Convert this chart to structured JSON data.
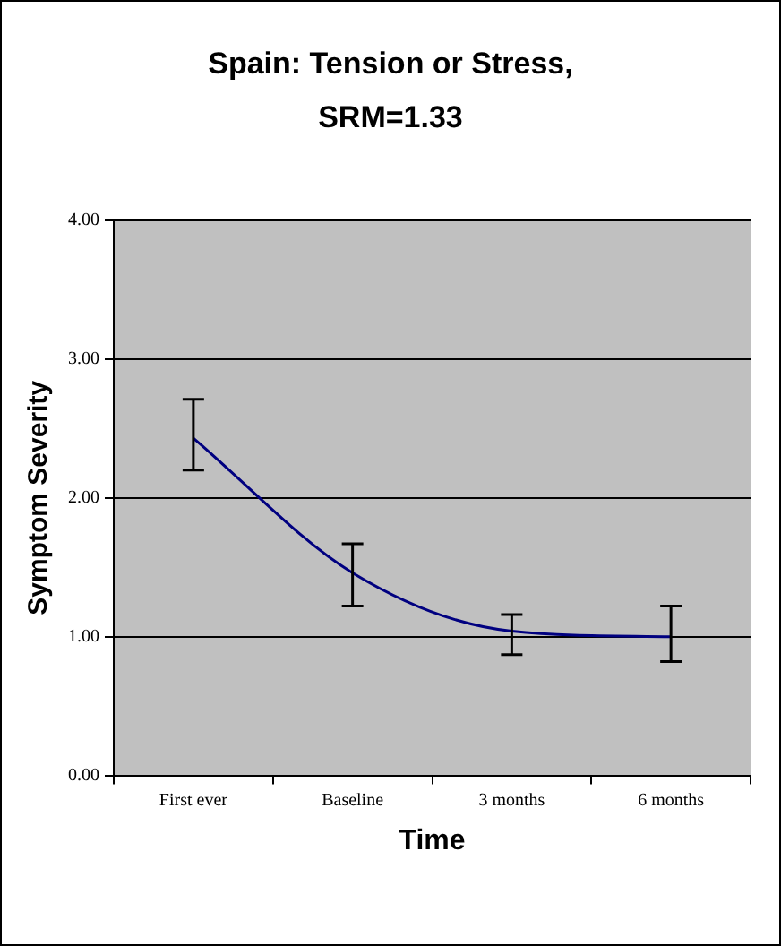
{
  "chart_data": {
    "type": "line",
    "title": "Spain: Tension or Stress, SRM=1.33",
    "xlabel": "Time",
    "ylabel": "Symptom Severity",
    "categories": [
      "First ever",
      "Baseline",
      "3 months",
      "6 months"
    ],
    "series": [
      {
        "color": "#000080",
        "values": [
          2.43,
          1.46,
          1.04,
          1.0
        ],
        "errors": [
          [
            2.2,
            2.71
          ],
          [
            1.22,
            1.67
          ],
          [
            0.87,
            1.16
          ],
          [
            0.82,
            1.22
          ]
        ]
      }
    ],
    "ylim": [
      0,
      4
    ],
    "yticks": [
      {
        "value": 0,
        "label": "0.00"
      },
      {
        "value": 1,
        "label": "1.00"
      },
      {
        "value": 2,
        "label": "2.00"
      },
      {
        "value": 3,
        "label": "3.00"
      },
      {
        "value": 4,
        "label": "4.00"
      }
    ],
    "grid": "y",
    "legend": false,
    "marker": "none",
    "line_style": "solid"
  }
}
